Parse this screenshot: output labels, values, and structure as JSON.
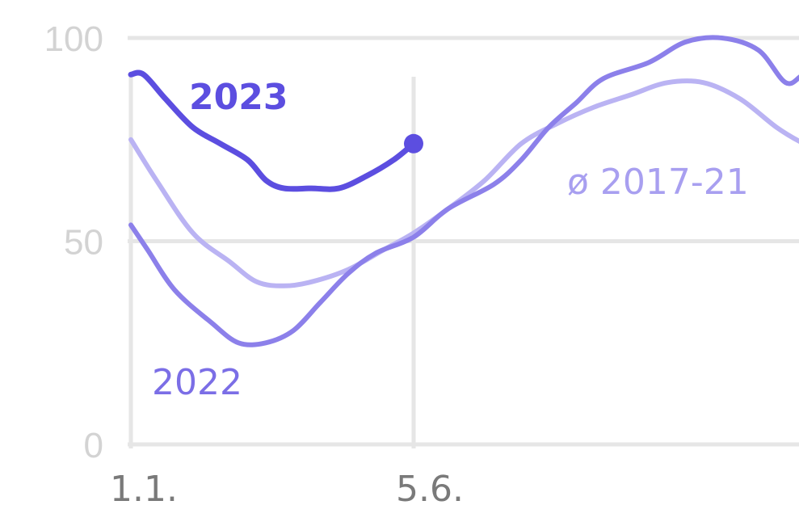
{
  "chart_data": {
    "type": "line",
    "y_ticks": [
      "0",
      "50",
      "100"
    ],
    "x_ticks": [
      {
        "label": "1.1.",
        "day": 1
      },
      {
        "label": "5.6.",
        "day": 156
      }
    ],
    "ylim": [
      0,
      100
    ],
    "grid": true,
    "series": [
      {
        "name": "2023",
        "color": "#5c4ee0",
        "end_marker": true,
        "points": [
          [
            1,
            91
          ],
          [
            8,
            91
          ],
          [
            20,
            85
          ],
          [
            35,
            78
          ],
          [
            50,
            74
          ],
          [
            65,
            70
          ],
          [
            75,
            65
          ],
          [
            85,
            63
          ],
          [
            100,
            63
          ],
          [
            115,
            63
          ],
          [
            130,
            66
          ],
          [
            145,
            70
          ],
          [
            156,
            74
          ]
        ]
      },
      {
        "name": "2022",
        "color": "#8c80ea",
        "points": [
          [
            1,
            54
          ],
          [
            10,
            48
          ],
          [
            25,
            38
          ],
          [
            45,
            30
          ],
          [
            60,
            25
          ],
          [
            75,
            25
          ],
          [
            90,
            28
          ],
          [
            105,
            35
          ],
          [
            120,
            42
          ],
          [
            135,
            47
          ],
          [
            156,
            51
          ],
          [
            175,
            58
          ],
          [
            200,
            64
          ],
          [
            215,
            70
          ],
          [
            230,
            78
          ],
          [
            245,
            84
          ],
          [
            260,
            90
          ],
          [
            285,
            94
          ],
          [
            305,
            99
          ],
          [
            325,
            100
          ],
          [
            345,
            97
          ],
          [
            360,
            89
          ],
          [
            370,
            91
          ],
          [
            382,
            92
          ]
        ]
      },
      {
        "name": "ø 2017-21",
        "color": "#bab3f3",
        "points": [
          [
            1,
            75
          ],
          [
            15,
            65
          ],
          [
            35,
            52
          ],
          [
            55,
            45
          ],
          [
            70,
            40
          ],
          [
            85,
            39
          ],
          [
            100,
            40
          ],
          [
            120,
            43
          ],
          [
            140,
            48
          ],
          [
            156,
            52
          ],
          [
            175,
            58
          ],
          [
            195,
            65
          ],
          [
            215,
            74
          ],
          [
            235,
            79
          ],
          [
            255,
            83
          ],
          [
            275,
            86
          ],
          [
            295,
            89
          ],
          [
            315,
            89
          ],
          [
            335,
            85
          ],
          [
            355,
            78
          ],
          [
            370,
            74
          ],
          [
            382,
            72
          ]
        ]
      }
    ]
  }
}
